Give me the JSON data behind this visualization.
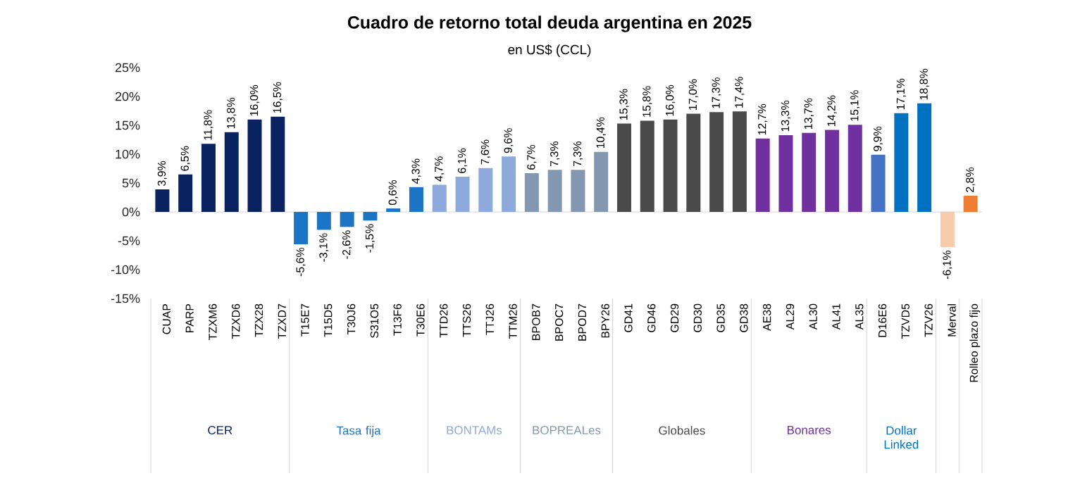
{
  "chart_data": {
    "type": "bar",
    "title": "Cuadro de retorno total deuda argentina en 2025",
    "subtitle": "en US$ (CCL)",
    "categories": [
      "CUAP",
      "PARP",
      "TZXM6",
      "TZXD6",
      "TZX28",
      "TZXD7",
      "T15E7",
      "T15D5",
      "T30J6",
      "S31O5",
      "T13F6",
      "T30E6",
      "TTD26",
      "TTS26",
      "TTJ26",
      "TTM26",
      "BPOB7",
      "BPOC7",
      "BPOD7",
      "BPY26",
      "GD41",
      "GD46",
      "GD29",
      "GD30",
      "GD35",
      "GD38",
      "AE38",
      "AL29",
      "AL30",
      "AL41",
      "AL35",
      "D16E6",
      "TZVD5",
      "TZV26",
      "Merval",
      "Rolleo plazo fijo"
    ],
    "ylim": [
      -15,
      25
    ],
    "yticks": [
      {
        "value": -15,
        "label": "-15%"
      },
      {
        "value": -10,
        "label": "-10%"
      },
      {
        "value": -5,
        "label": "-5%"
      },
      {
        "value": 0,
        "label": "0%"
      },
      {
        "value": 5,
        "label": "5%"
      },
      {
        "value": 10,
        "label": "10%"
      },
      {
        "value": 15,
        "label": "15%"
      },
      {
        "value": 20,
        "label": "20%"
      },
      {
        "value": 25,
        "label": "25%"
      }
    ],
    "series": [
      {
        "name": "CER",
        "color": "#0b2260",
        "values": [
          3.9,
          6.5,
          11.8,
          13.8,
          16.0,
          16.5,
          null,
          null,
          null,
          null,
          null,
          null,
          null,
          null,
          null,
          null,
          null,
          null,
          null,
          null,
          null,
          null,
          null,
          null,
          null,
          null,
          null,
          null,
          null,
          null,
          null,
          null,
          null,
          null,
          null,
          null
        ],
        "value_labels": [
          "3,9%",
          "6,5%",
          "11,8%",
          "13,8%",
          "16,0%",
          "16,5%",
          null,
          null,
          null,
          null,
          null,
          null,
          null,
          null,
          null,
          null,
          null,
          null,
          null,
          null,
          null,
          null,
          null,
          null,
          null,
          null,
          null,
          null,
          null,
          null,
          null,
          null,
          null,
          null,
          null,
          null
        ]
      },
      {
        "name": "Tasa fija",
        "color": "#1c74c4",
        "values": [
          null,
          null,
          null,
          null,
          null,
          null,
          -5.6,
          -3.1,
          -2.6,
          -1.5,
          0.6,
          4.3,
          null,
          null,
          null,
          null,
          null,
          null,
          null,
          null,
          null,
          null,
          null,
          null,
          null,
          null,
          null,
          null,
          null,
          null,
          null,
          null,
          null,
          null,
          null,
          null
        ],
        "value_labels": [
          null,
          null,
          null,
          null,
          null,
          null,
          "-5,6%",
          "-3,1%",
          "-2,6%",
          "-1,5%",
          "0,6%",
          "4,3%",
          null,
          null,
          null,
          null,
          null,
          null,
          null,
          null,
          null,
          null,
          null,
          null,
          null,
          null,
          null,
          null,
          null,
          null,
          null,
          null,
          null,
          null,
          null,
          null
        ]
      },
      {
        "name": "BONTAMs",
        "color": "#8eaadc",
        "values": [
          null,
          null,
          null,
          null,
          null,
          null,
          null,
          null,
          null,
          null,
          null,
          null,
          4.7,
          6.1,
          7.6,
          9.6,
          null,
          null,
          null,
          null,
          null,
          null,
          null,
          null,
          null,
          null,
          null,
          null,
          null,
          null,
          null,
          null,
          null,
          null,
          null,
          null
        ],
        "value_labels": [
          null,
          null,
          null,
          null,
          null,
          null,
          null,
          null,
          null,
          null,
          null,
          null,
          "4,7%",
          "6,1%",
          "7,6%",
          "9,6%",
          null,
          null,
          null,
          null,
          null,
          null,
          null,
          null,
          null,
          null,
          null,
          null,
          null,
          null,
          null,
          null,
          null,
          null,
          null,
          null
        ]
      },
      {
        "name": "BOPREALes",
        "color": "#8497b0",
        "values": [
          null,
          null,
          null,
          null,
          null,
          null,
          null,
          null,
          null,
          null,
          null,
          null,
          null,
          null,
          null,
          null,
          6.7,
          7.3,
          7.3,
          10.4,
          null,
          null,
          null,
          null,
          null,
          null,
          null,
          null,
          null,
          null,
          null,
          null,
          null,
          null,
          null,
          null
        ],
        "value_labels": [
          null,
          null,
          null,
          null,
          null,
          null,
          null,
          null,
          null,
          null,
          null,
          null,
          null,
          null,
          null,
          null,
          "6,7%",
          "7,3%",
          "7,3%",
          "10,4%",
          null,
          null,
          null,
          null,
          null,
          null,
          null,
          null,
          null,
          null,
          null,
          null,
          null,
          null,
          null,
          null
        ]
      },
      {
        "name": "Globales",
        "color": "#4a4a4a",
        "values": [
          null,
          null,
          null,
          null,
          null,
          null,
          null,
          null,
          null,
          null,
          null,
          null,
          null,
          null,
          null,
          null,
          null,
          null,
          null,
          null,
          15.3,
          15.8,
          16.0,
          17.0,
          17.3,
          17.4,
          null,
          null,
          null,
          null,
          null,
          null,
          null,
          null,
          null,
          null
        ],
        "value_labels": [
          null,
          null,
          null,
          null,
          null,
          null,
          null,
          null,
          null,
          null,
          null,
          null,
          null,
          null,
          null,
          null,
          null,
          null,
          null,
          null,
          "15,3%",
          "15,8%",
          "16,0%",
          "17,0%",
          "17,3%",
          "17,4%",
          null,
          null,
          null,
          null,
          null,
          null,
          null,
          null,
          null,
          null
        ]
      },
      {
        "name": "Bonares",
        "color": "#7030a0",
        "values": [
          null,
          null,
          null,
          null,
          null,
          null,
          null,
          null,
          null,
          null,
          null,
          null,
          null,
          null,
          null,
          null,
          null,
          null,
          null,
          null,
          null,
          null,
          null,
          null,
          null,
          null,
          12.7,
          13.3,
          13.7,
          14.2,
          15.1,
          null,
          null,
          null,
          null,
          null
        ],
        "value_labels": [
          null,
          null,
          null,
          null,
          null,
          null,
          null,
          null,
          null,
          null,
          null,
          null,
          null,
          null,
          null,
          null,
          null,
          null,
          null,
          null,
          null,
          null,
          null,
          null,
          null,
          null,
          "12,7%",
          "13,3%",
          "13,7%",
          "14,2%",
          "15,1%",
          null,
          null,
          null,
          null,
          null
        ]
      },
      {
        "name": "Dollar Linked",
        "color": "#0070c0",
        "colors": [
          null,
          null,
          null,
          null,
          null,
          null,
          null,
          null,
          null,
          null,
          null,
          null,
          null,
          null,
          null,
          null,
          null,
          null,
          null,
          null,
          null,
          null,
          null,
          null,
          null,
          null,
          null,
          null,
          null,
          null,
          null,
          "#4472c4",
          "#0070c0",
          "#0070c0",
          null,
          null
        ],
        "values": [
          null,
          null,
          null,
          null,
          null,
          null,
          null,
          null,
          null,
          null,
          null,
          null,
          null,
          null,
          null,
          null,
          null,
          null,
          null,
          null,
          null,
          null,
          null,
          null,
          null,
          null,
          null,
          null,
          null,
          null,
          null,
          9.9,
          17.1,
          18.8,
          null,
          null
        ],
        "value_labels": [
          null,
          null,
          null,
          null,
          null,
          null,
          null,
          null,
          null,
          null,
          null,
          null,
          null,
          null,
          null,
          null,
          null,
          null,
          null,
          null,
          null,
          null,
          null,
          null,
          null,
          null,
          null,
          null,
          null,
          null,
          null,
          "9,9%",
          "17,1%",
          "18,8%",
          null,
          null
        ]
      },
      {
        "color": "#f8cbad",
        "values": [
          null,
          null,
          null,
          null,
          null,
          null,
          null,
          null,
          null,
          null,
          null,
          null,
          null,
          null,
          null,
          null,
          null,
          null,
          null,
          null,
          null,
          null,
          null,
          null,
          null,
          null,
          null,
          null,
          null,
          null,
          null,
          null,
          null,
          null,
          -6.1,
          null
        ],
        "value_labels": [
          null,
          null,
          null,
          null,
          null,
          null,
          null,
          null,
          null,
          null,
          null,
          null,
          null,
          null,
          null,
          null,
          null,
          null,
          null,
          null,
          null,
          null,
          null,
          null,
          null,
          null,
          null,
          null,
          null,
          null,
          null,
          null,
          null,
          null,
          "-6,1%",
          null
        ]
      },
      {
        "color": "#ed7d31",
        "values": [
          null,
          null,
          null,
          null,
          null,
          null,
          null,
          null,
          null,
          null,
          null,
          null,
          null,
          null,
          null,
          null,
          null,
          null,
          null,
          null,
          null,
          null,
          null,
          null,
          null,
          null,
          null,
          null,
          null,
          null,
          null,
          null,
          null,
          null,
          null,
          2.8
        ],
        "value_labels": [
          null,
          null,
          null,
          null,
          null,
          null,
          null,
          null,
          null,
          null,
          null,
          null,
          null,
          null,
          null,
          null,
          null,
          null,
          null,
          null,
          null,
          null,
          null,
          null,
          null,
          null,
          null,
          null,
          null,
          null,
          null,
          null,
          null,
          null,
          null,
          "2,8%"
        ]
      }
    ]
  }
}
